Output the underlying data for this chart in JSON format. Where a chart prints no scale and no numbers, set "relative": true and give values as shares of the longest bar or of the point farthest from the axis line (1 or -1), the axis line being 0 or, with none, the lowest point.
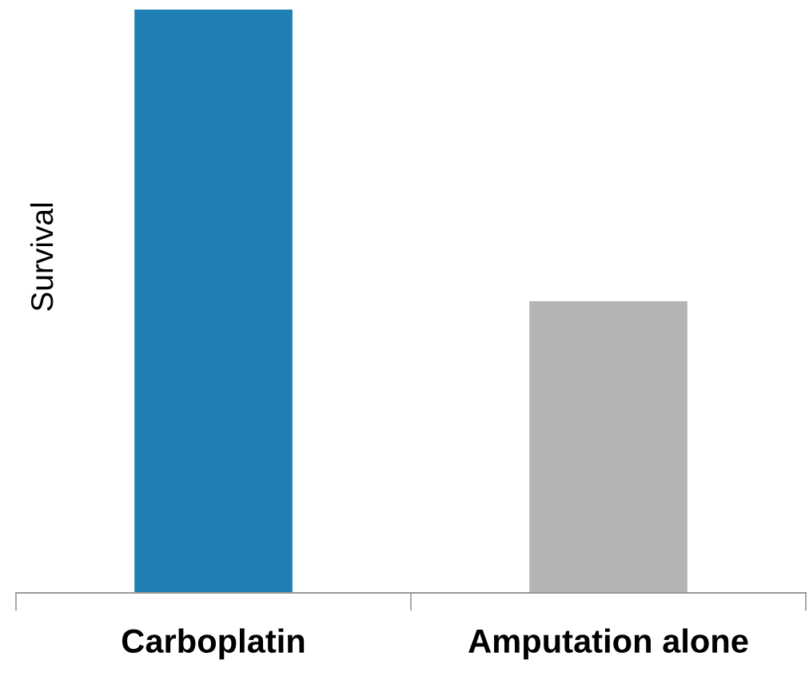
{
  "chart_data": {
    "type": "bar",
    "ylabel": "Survival",
    "categories": [
      "Carboplatin",
      "Amputation alone"
    ],
    "values": [
      1,
      0.5
    ],
    "colors": [
      "#1f7fb2",
      "#b4b4b4"
    ],
    "relative": true,
    "grid": false,
    "legend": false
  }
}
